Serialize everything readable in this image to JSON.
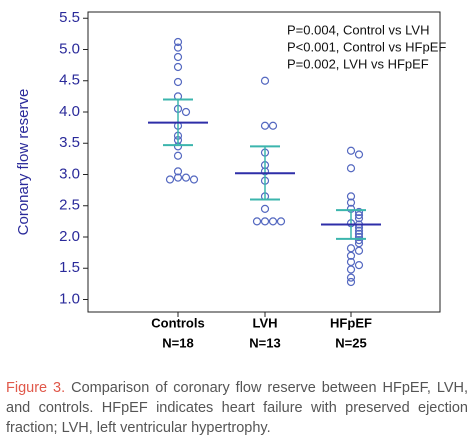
{
  "chart_data": {
    "type": "strip",
    "y_label": "Coronary flow reserve",
    "ylim": [
      0.8,
      5.6
    ],
    "yticks": [
      {
        "value": 1,
        "label": "1.0"
      },
      1.5,
      {
        "value": 2,
        "label": "2.0"
      },
      2.5,
      {
        "value": 3,
        "label": "3.0"
      },
      3.5,
      {
        "value": 4,
        "label": "4.0"
      },
      4.5,
      {
        "value": 5,
        "label": "5.0"
      },
      5.5
    ],
    "annotations": [
      "P=0.004, Control vs LVH",
      "P<0.001, Control vs HFpEF",
      "P=0.002, LVH vs HFpEF"
    ],
    "point_color": "#5468c0",
    "mean_color": "#2e2ea8",
    "sd_color": "#3bb5ad",
    "groups": [
      {
        "name": "Controls",
        "n_label": "N=18",
        "values": [
          5.12,
          5.03,
          4.88,
          4.72,
          4.48,
          4.25,
          4.05,
          4.0,
          3.78,
          3.62,
          3.55,
          3.45,
          3.3,
          3.05,
          2.95,
          2.95,
          2.92,
          2.92
        ],
        "mean": 3.83,
        "upper": 4.2,
        "lower": 3.47
      },
      {
        "name": "LVH",
        "n_label": "N=13",
        "values": [
          4.5,
          3.78,
          3.78,
          3.35,
          3.15,
          3.05,
          2.9,
          2.65,
          2.45,
          2.25,
          2.25,
          2.25,
          2.25
        ],
        "mean": 3.02,
        "upper": 3.45,
        "lower": 2.6
      },
      {
        "name": "HFpEF",
        "n_label": "N=25",
        "values": [
          3.38,
          3.32,
          3.1,
          2.65,
          2.55,
          2.45,
          2.4,
          2.35,
          2.3,
          2.22,
          2.2,
          2.15,
          2.1,
          2.05,
          2.0,
          1.95,
          1.9,
          1.82,
          1.78,
          1.7,
          1.6,
          1.55,
          1.48,
          1.35,
          1.28
        ],
        "mean": 2.2,
        "upper": 2.43,
        "lower": 1.97
      }
    ]
  },
  "caption": {
    "label": "Figure 3.",
    "text": "Comparison of coronary flow reserve between HFpEF, LVH, and controls. HFpEF indicates heart failure with preserved ejection fraction; LVH, left ventricular hypertrophy."
  }
}
